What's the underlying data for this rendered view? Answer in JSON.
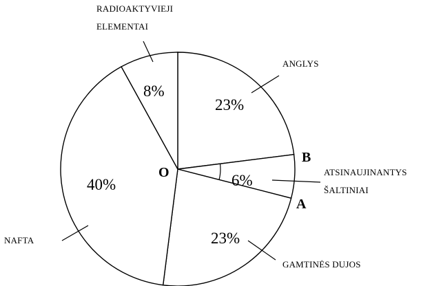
{
  "chart_data": {
    "type": "pie",
    "categories": [
      "ANGLYS",
      "ATSINAUJINANTYS ŠALTINIAI",
      "GAMTINĖS DUJOS",
      "NAFTA",
      "RADIOAKTYVIEJI ELEMENTAI"
    ],
    "values": [
      23,
      6,
      23,
      40,
      8
    ],
    "value_labels": [
      "23%",
      "6%",
      "23%",
      "40%",
      "8%"
    ],
    "color": "#ffffff",
    "annotations": [
      "O",
      "B",
      "A"
    ]
  }
}
